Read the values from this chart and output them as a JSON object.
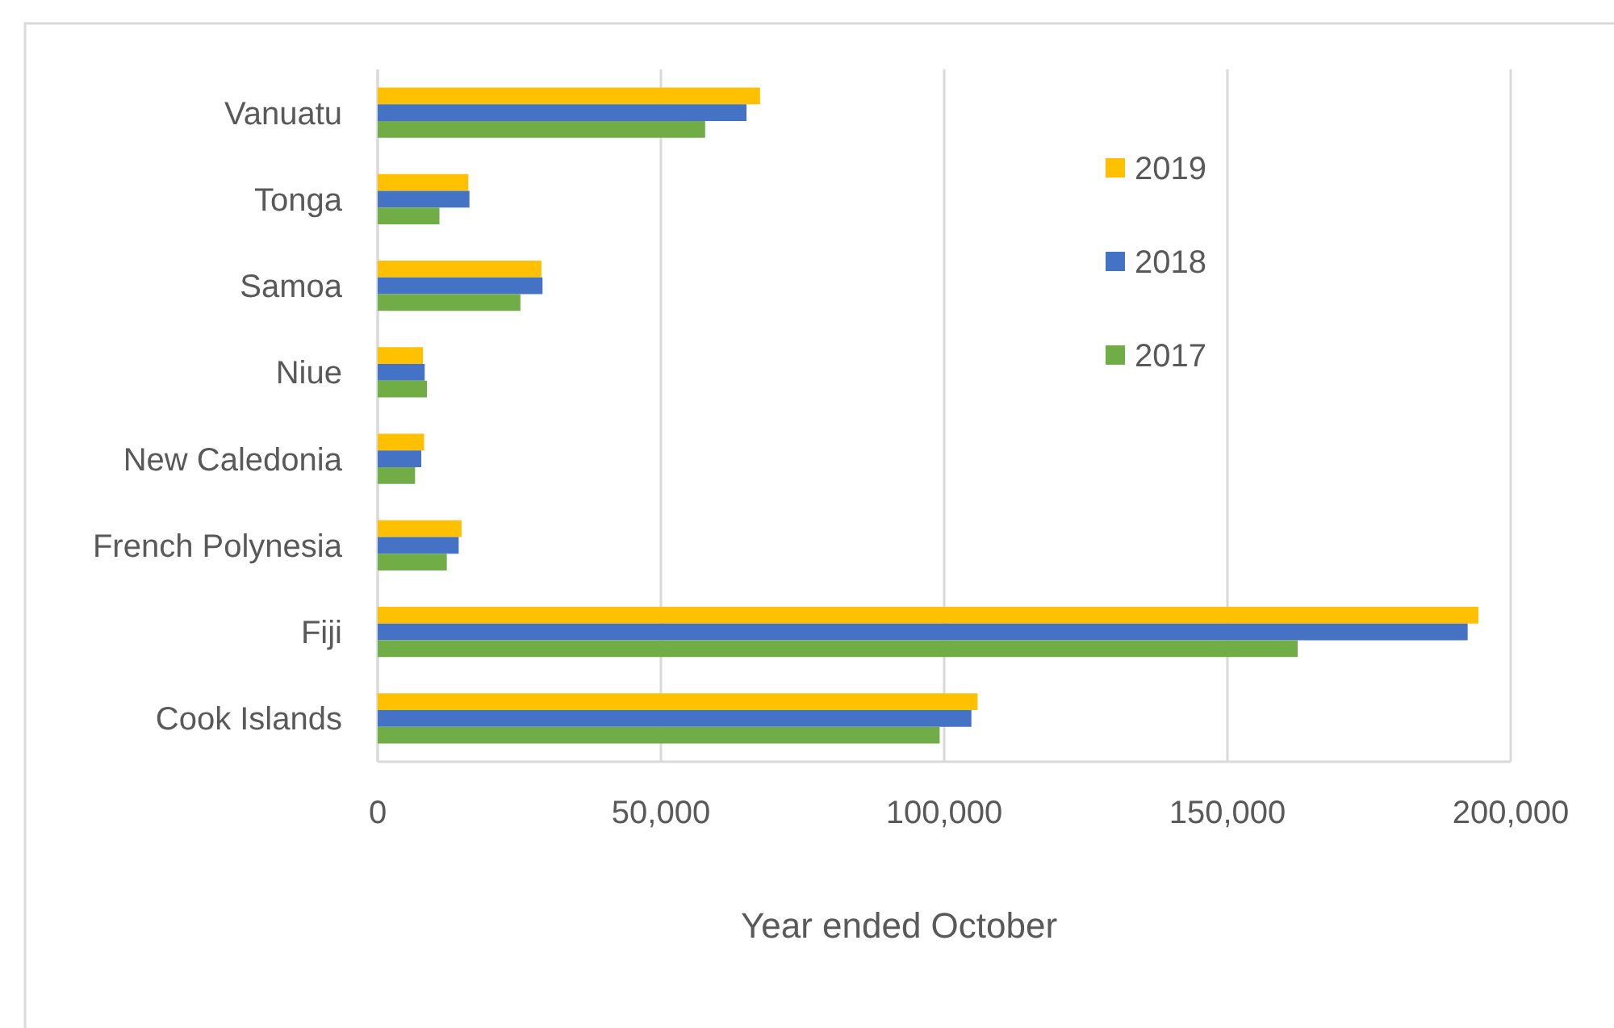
{
  "chart_data": {
    "type": "bar",
    "orientation": "horizontal",
    "xlabel": "Year ended October",
    "categories": [
      "Vanuatu",
      "Tonga",
      "Samoa",
      "Niue",
      "New Caledonia",
      "French Polynesia",
      "Fiji",
      "Cook Islands"
    ],
    "series": [
      {
        "name": "2019",
        "color": "#ffc000",
        "values": [
          67500,
          16000,
          28900,
          8000,
          8200,
          14800,
          194300,
          105900
        ]
      },
      {
        "name": "2018",
        "color": "#4472c4",
        "values": [
          65100,
          16200,
          29100,
          8300,
          7700,
          14300,
          192400,
          104800
        ]
      },
      {
        "name": "2017",
        "color": "#70ad47",
        "values": [
          57800,
          10900,
          25200,
          8700,
          6600,
          12200,
          162400,
          99200
        ]
      }
    ],
    "xlim": [
      0,
      200000
    ],
    "xticks": [
      {
        "value": 0,
        "label": "0"
      },
      {
        "value": 50000,
        "label": "50,000"
      },
      {
        "value": 100000,
        "label": "100,000"
      },
      {
        "value": 150000,
        "label": "150,000"
      },
      {
        "value": 200000,
        "label": "200,000"
      }
    ],
    "grid": "x",
    "legend": "top right"
  }
}
